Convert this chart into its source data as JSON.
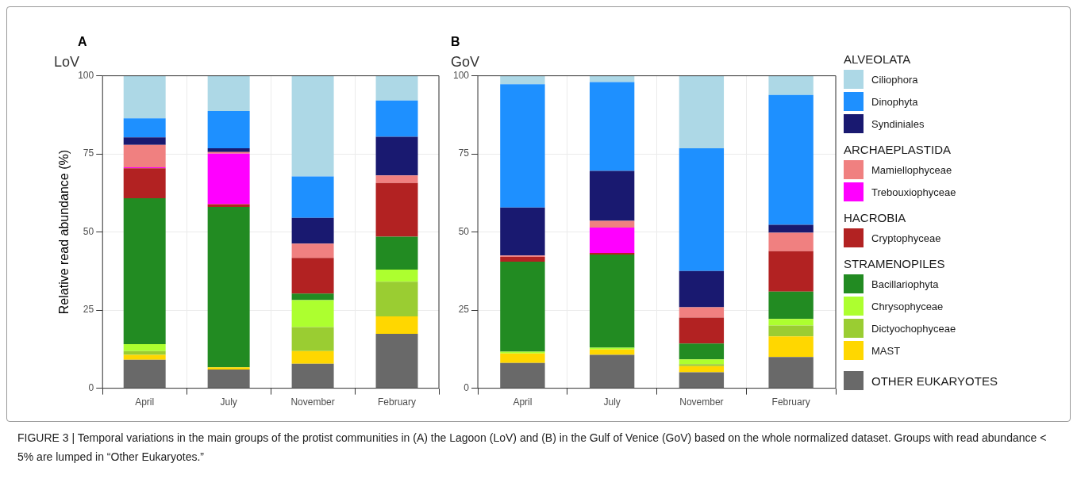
{
  "chart_data": [
    {
      "type": "bar",
      "stacked": true,
      "title": "LoV",
      "ylabel": "Relative read abundance (%)",
      "categories": [
        "April",
        "July",
        "November",
        "February"
      ],
      "ylim": [
        0,
        100
      ],
      "yticks": [
        0,
        25,
        50,
        75,
        100
      ],
      "grid": true,
      "legend": false,
      "annotations": [
        "A",
        "FIGURE 3 | Temporal variations in the main groups of the protist communities in (A) the Lagoon (LoV) and (B) in the Gulf of Venice (GoV) based on the whole normalized dataset. Groups with read abundance < 5% are lumped in “Other Eukaryotes.”"
      ],
      "series": [
        {
          "color": "#696969",
          "values": [
            9.1,
            6.0,
            7.8,
            17.4
          ]
        },
        {
          "color": "#ffd700",
          "values": [
            1.6,
            0.7,
            4.1,
            5.6
          ]
        },
        {
          "color": "#9acd32",
          "values": [
            1.2,
            0,
            7.7,
            11.1
          ]
        },
        {
          "color": "#adff2f",
          "values": [
            2.2,
            0,
            8.6,
            3.9
          ]
        },
        {
          "color": "#228b22",
          "values": [
            46.7,
            51.3,
            2.1,
            10.5
          ]
        },
        {
          "color": "#b22222",
          "values": [
            9.6,
            0.9,
            11.4,
            17.2
          ]
        },
        {
          "color": "#ff00ff",
          "values": [
            0.3,
            16.2,
            0,
            0
          ]
        },
        {
          "color": "#f08080",
          "values": [
            7.2,
            0.5,
            4.6,
            2.4
          ]
        },
        {
          "color": "#191970",
          "values": [
            2.4,
            1.2,
            8.2,
            12.4
          ]
        },
        {
          "color": "#1e90ff",
          "values": [
            6.1,
            11.9,
            13.3,
            11.6
          ]
        },
        {
          "color": "#add8e6",
          "values": [
            13.6,
            11.3,
            32.2,
            7.9
          ]
        }
      ]
    },
    {
      "type": "bar",
      "stacked": true,
      "title": "GoV",
      "categories": [
        "April",
        "July",
        "November",
        "February"
      ],
      "ylim": [
        0,
        100
      ],
      "yticks": [
        0,
        25,
        50,
        75,
        100
      ],
      "grid": true,
      "legend": "right",
      "annotations": [
        "B",
        "ALVEOLATA",
        "ARCHAEPLASTIDA",
        "HACROBIA",
        "STRAMENOPILES"
      ],
      "series": [
        {
          "name": "OTHER EUKARYOTES",
          "color": "#696969",
          "values": [
            8.1,
            10.7,
            5.1,
            10.0
          ]
        },
        {
          "name": "MAST",
          "color": "#ffd700",
          "values": [
            3.0,
            1.7,
            2.0,
            6.6
          ]
        },
        {
          "name": "Dictyochophyceae",
          "color": "#9acd32",
          "values": [
            0,
            0,
            0.6,
            3.5
          ]
        },
        {
          "name": "Chrysophyceae",
          "color": "#adff2f",
          "values": [
            0.6,
            0.6,
            1.5,
            2.1
          ]
        },
        {
          "name": "Bacillariophyta",
          "color": "#228b22",
          "values": [
            28.8,
            29.8,
            5.1,
            8.7
          ]
        },
        {
          "name": "Cryptophyceae",
          "color": "#b22222",
          "values": [
            1.5,
            0.5,
            8.3,
            13.0
          ]
        },
        {
          "name": "Trebouxiophyceae",
          "color": "#ff00ff",
          "values": [
            0,
            8.1,
            0,
            0
          ]
        },
        {
          "name": "Mamiellophyceae",
          "color": "#f08080",
          "values": [
            0.5,
            2.2,
            3.3,
            5.9
          ]
        },
        {
          "name": "Syndiniales",
          "color": "#191970",
          "values": [
            15.3,
            16.0,
            11.6,
            2.5
          ]
        },
        {
          "name": "Dinophyta",
          "color": "#1e90ff",
          "values": [
            39.5,
            28.4,
            39.3,
            41.6
          ]
        },
        {
          "name": "Ciliophora",
          "color": "#add8e6",
          "values": [
            2.7,
            2.0,
            23.2,
            6.1
          ]
        }
      ]
    }
  ]
}
